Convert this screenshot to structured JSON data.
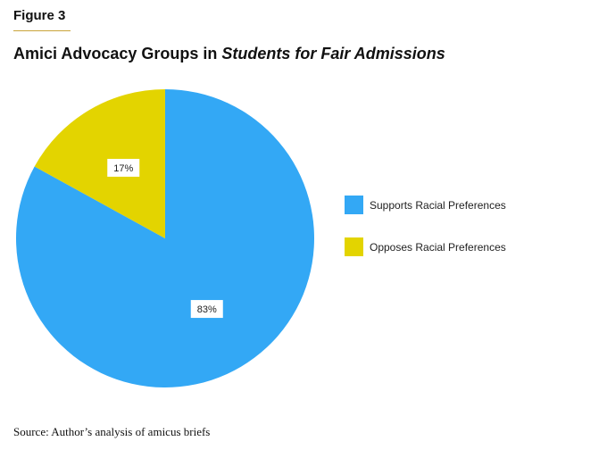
{
  "figure_label": "Figure 3",
  "title": {
    "main": "Amici Advocacy Groups in ",
    "italic": "Students for Fair Admissions"
  },
  "chart_data": {
    "type": "pie",
    "title": "Amici Advocacy Groups in Students for Fair Admissions",
    "slices": [
      {
        "label": "Supports Racial Preferences",
        "value": 83,
        "display": "83%",
        "color": "#33a8f5"
      },
      {
        "label": "Opposes Racial Preferences",
        "value": 17,
        "display": "17%",
        "color": "#e3d400"
      }
    ],
    "start": "12 o'clock",
    "direction": "clockwise",
    "legend_position": "right"
  },
  "legend": {
    "items": [
      {
        "label": "Supports Racial Preferences",
        "color": "#33a8f5"
      },
      {
        "label": "Opposes Racial Preferences",
        "color": "#e3d400"
      }
    ]
  },
  "source": "Source: Author’s analysis of amicus briefs"
}
